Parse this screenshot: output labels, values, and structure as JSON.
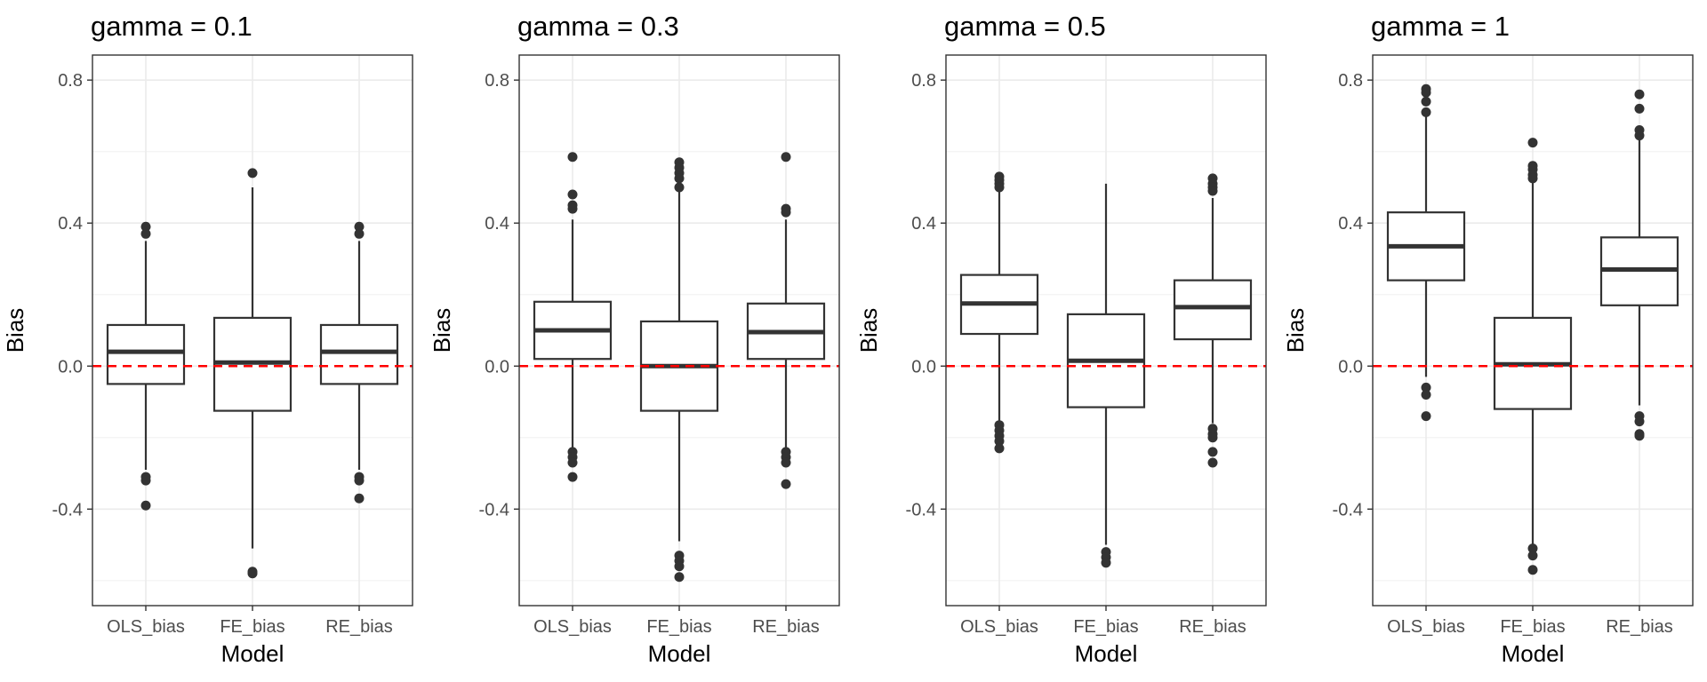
{
  "chart_data": [
    {
      "type": "boxplot",
      "title": "gamma = 0.1",
      "xlabel": "Model",
      "ylabel": "Bias",
      "categories": [
        "OLS_bias",
        "FE_bias",
        "RE_bias"
      ],
      "y_ticks": [
        -0.4,
        0.0,
        0.4,
        0.8
      ],
      "y_tick_labels": [
        "-0.4",
        "0.0",
        "0.4",
        "0.8"
      ],
      "ylim": [
        -0.67,
        0.87
      ],
      "reference_line": {
        "y": 0,
        "color": "#ff0000",
        "style": "dashed"
      },
      "grid": true,
      "boxes": [
        {
          "category": "OLS_bias",
          "q1": -0.05,
          "median": 0.04,
          "q3": 0.115,
          "whisker_low": -0.29,
          "whisker_high": 0.35,
          "outliers": [
            0.39,
            0.37,
            -0.31,
            -0.32,
            -0.39
          ]
        },
        {
          "category": "FE_bias",
          "q1": -0.125,
          "median": 0.01,
          "q3": 0.135,
          "whisker_low": -0.51,
          "whisker_high": 0.5,
          "outliers": [
            0.54,
            -0.58,
            -0.575
          ]
        },
        {
          "category": "RE_bias",
          "q1": -0.05,
          "median": 0.04,
          "q3": 0.115,
          "whisker_low": -0.29,
          "whisker_high": 0.35,
          "outliers": [
            0.39,
            0.37,
            -0.31,
            -0.32,
            -0.37
          ]
        }
      ]
    },
    {
      "type": "boxplot",
      "title": "gamma = 0.3",
      "xlabel": "Model",
      "ylabel": "Bias",
      "categories": [
        "OLS_bias",
        "FE_bias",
        "RE_bias"
      ],
      "y_ticks": [
        -0.4,
        0.0,
        0.4,
        0.8
      ],
      "y_tick_labels": [
        "-0.4",
        "0.0",
        "0.4",
        "0.8"
      ],
      "ylim": [
        -0.67,
        0.87
      ],
      "reference_line": {
        "y": 0,
        "color": "#ff0000",
        "style": "dashed"
      },
      "grid": true,
      "boxes": [
        {
          "category": "OLS_bias",
          "q1": 0.02,
          "median": 0.1,
          "q3": 0.18,
          "whisker_low": -0.23,
          "whisker_high": 0.41,
          "outliers": [
            0.585,
            0.48,
            0.45,
            0.44,
            -0.24,
            -0.255,
            -0.27,
            -0.31
          ]
        },
        {
          "category": "FE_bias",
          "q1": -0.125,
          "median": 0.0,
          "q3": 0.125,
          "whisker_low": -0.49,
          "whisker_high": 0.49,
          "outliers": [
            0.57,
            0.555,
            0.54,
            0.525,
            0.5,
            -0.53,
            -0.545,
            -0.56,
            -0.59
          ]
        },
        {
          "category": "RE_bias",
          "q1": 0.02,
          "median": 0.095,
          "q3": 0.175,
          "whisker_low": -0.23,
          "whisker_high": 0.41,
          "outliers": [
            0.585,
            0.44,
            0.43,
            -0.24,
            -0.255,
            -0.27,
            -0.33
          ]
        }
      ]
    },
    {
      "type": "boxplot",
      "title": "gamma = 0.5",
      "xlabel": "Model",
      "ylabel": "Bias",
      "categories": [
        "OLS_bias",
        "FE_bias",
        "RE_bias"
      ],
      "y_ticks": [
        -0.4,
        0.0,
        0.4,
        0.8
      ],
      "y_tick_labels": [
        "-0.4",
        "0.0",
        "0.4",
        "0.8"
      ],
      "ylim": [
        -0.67,
        0.87
      ],
      "reference_line": {
        "y": 0,
        "color": "#ff0000",
        "style": "dashed"
      },
      "grid": true,
      "boxes": [
        {
          "category": "OLS_bias",
          "q1": 0.09,
          "median": 0.175,
          "q3": 0.255,
          "whisker_low": -0.155,
          "whisker_high": 0.49,
          "outliers": [
            0.53,
            0.52,
            0.51,
            0.5,
            -0.165,
            -0.18,
            -0.195,
            -0.21,
            -0.23
          ]
        },
        {
          "category": "FE_bias",
          "q1": -0.115,
          "median": 0.015,
          "q3": 0.145,
          "whisker_low": -0.5,
          "whisker_high": 0.51,
          "outliers": [
            -0.52,
            -0.535,
            -0.55
          ]
        },
        {
          "category": "RE_bias",
          "q1": 0.075,
          "median": 0.165,
          "q3": 0.24,
          "whisker_low": -0.16,
          "whisker_high": 0.47,
          "outliers": [
            0.525,
            0.51,
            0.5,
            0.49,
            -0.175,
            -0.19,
            -0.2,
            -0.24,
            -0.27
          ]
        }
      ]
    },
    {
      "type": "boxplot",
      "title": "gamma = 1",
      "xlabel": "Model",
      "ylabel": "Bias",
      "categories": [
        "OLS_bias",
        "FE_bias",
        "RE_bias"
      ],
      "y_ticks": [
        -0.4,
        0.0,
        0.4,
        0.8
      ],
      "y_tick_labels": [
        "-0.4",
        "0.0",
        "0.4",
        "0.8"
      ],
      "ylim": [
        -0.67,
        0.87
      ],
      "reference_line": {
        "y": 0,
        "color": "#ff0000",
        "style": "dashed"
      },
      "grid": true,
      "boxes": [
        {
          "category": "OLS_bias",
          "q1": 0.24,
          "median": 0.335,
          "q3": 0.43,
          "whisker_low": -0.03,
          "whisker_high": 0.7,
          "outliers": [
            0.775,
            0.765,
            0.74,
            0.71,
            -0.06,
            -0.08,
            -0.14
          ]
        },
        {
          "category": "FE_bias",
          "q1": -0.12,
          "median": 0.005,
          "q3": 0.135,
          "whisker_low": -0.5,
          "whisker_high": 0.52,
          "outliers": [
            0.625,
            0.56,
            0.55,
            0.535,
            0.525,
            -0.51,
            -0.53,
            -0.57
          ]
        },
        {
          "category": "RE_bias",
          "q1": 0.17,
          "median": 0.27,
          "q3": 0.36,
          "whisker_low": -0.11,
          "whisker_high": 0.64,
          "outliers": [
            0.76,
            0.72,
            0.66,
            0.645,
            -0.14,
            -0.155,
            -0.19,
            -0.195
          ]
        }
      ]
    }
  ]
}
